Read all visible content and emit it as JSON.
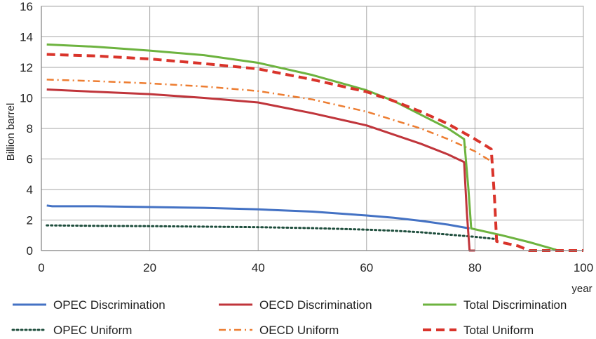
{
  "chart_data": {
    "type": "line",
    "title": "",
    "xlabel": "year",
    "ylabel": "Billion barrel",
    "xlim": [
      0,
      100
    ],
    "ylim": [
      0,
      16
    ],
    "xticks": [
      "0",
      "20",
      "40",
      "60",
      "80",
      "100"
    ],
    "yticks": [
      "0",
      "2",
      "4",
      "6",
      "8",
      "10",
      "12",
      "14",
      "16"
    ],
    "grid": true,
    "legend": "bottom",
    "series": [
      {
        "name": "OPEC Discrimination",
        "color": "#4472C4",
        "style": "solid",
        "x": [
          1,
          2,
          10,
          20,
          30,
          40,
          50,
          60,
          65,
          70,
          75,
          79
        ],
        "y": [
          2.95,
          2.9,
          2.9,
          2.85,
          2.8,
          2.7,
          2.55,
          2.3,
          2.15,
          1.95,
          1.7,
          1.45
        ]
      },
      {
        "name": "OECD Discrimination",
        "color": "#C0353B",
        "style": "solid",
        "x": [
          1,
          10,
          20,
          30,
          40,
          50,
          60,
          70,
          75,
          78,
          78.5,
          79,
          80
        ],
        "y": [
          10.55,
          10.4,
          10.25,
          10.0,
          9.7,
          9.0,
          8.2,
          7.0,
          6.3,
          5.8,
          2.5,
          0,
          0
        ]
      },
      {
        "name": "Total Discrimination",
        "color": "#6DB33F",
        "style": "solid",
        "x": [
          1,
          10,
          20,
          30,
          40,
          50,
          60,
          65,
          70,
          75,
          78,
          78.8,
          79.3,
          85,
          90,
          95
        ],
        "y": [
          13.5,
          13.35,
          13.1,
          12.8,
          12.3,
          11.5,
          10.5,
          9.8,
          8.9,
          8.0,
          7.3,
          4.0,
          1.45,
          1.0,
          0.55,
          0.05
        ]
      },
      {
        "name": "OPEC Uniform",
        "color": "#1F4E3D",
        "style": "dotted",
        "x": [
          1,
          10,
          20,
          30,
          40,
          50,
          60,
          65,
          70,
          75,
          80,
          84
        ],
        "y": [
          1.65,
          1.62,
          1.6,
          1.57,
          1.53,
          1.47,
          1.37,
          1.3,
          1.2,
          1.05,
          0.9,
          0.75
        ]
      },
      {
        "name": "OECD Uniform",
        "color": "#ED7D31",
        "style": "dashdot",
        "x": [
          1,
          10,
          20,
          30,
          40,
          50,
          60,
          70,
          75,
          80,
          83
        ],
        "y": [
          11.2,
          11.1,
          10.95,
          10.75,
          10.45,
          9.9,
          9.1,
          8.0,
          7.3,
          6.5,
          5.85
        ]
      },
      {
        "name": "Total Uniform",
        "color": "#D9342B",
        "style": "dashed",
        "x": [
          1,
          10,
          20,
          30,
          40,
          50,
          60,
          65,
          70,
          75,
          80,
          83,
          83.6,
          84,
          88,
          90,
          95,
          100
        ],
        "y": [
          12.85,
          12.75,
          12.55,
          12.25,
          11.9,
          11.2,
          10.4,
          9.8,
          9.1,
          8.3,
          7.3,
          6.65,
          3.5,
          0.6,
          0.3,
          0,
          0,
          0
        ]
      }
    ]
  }
}
